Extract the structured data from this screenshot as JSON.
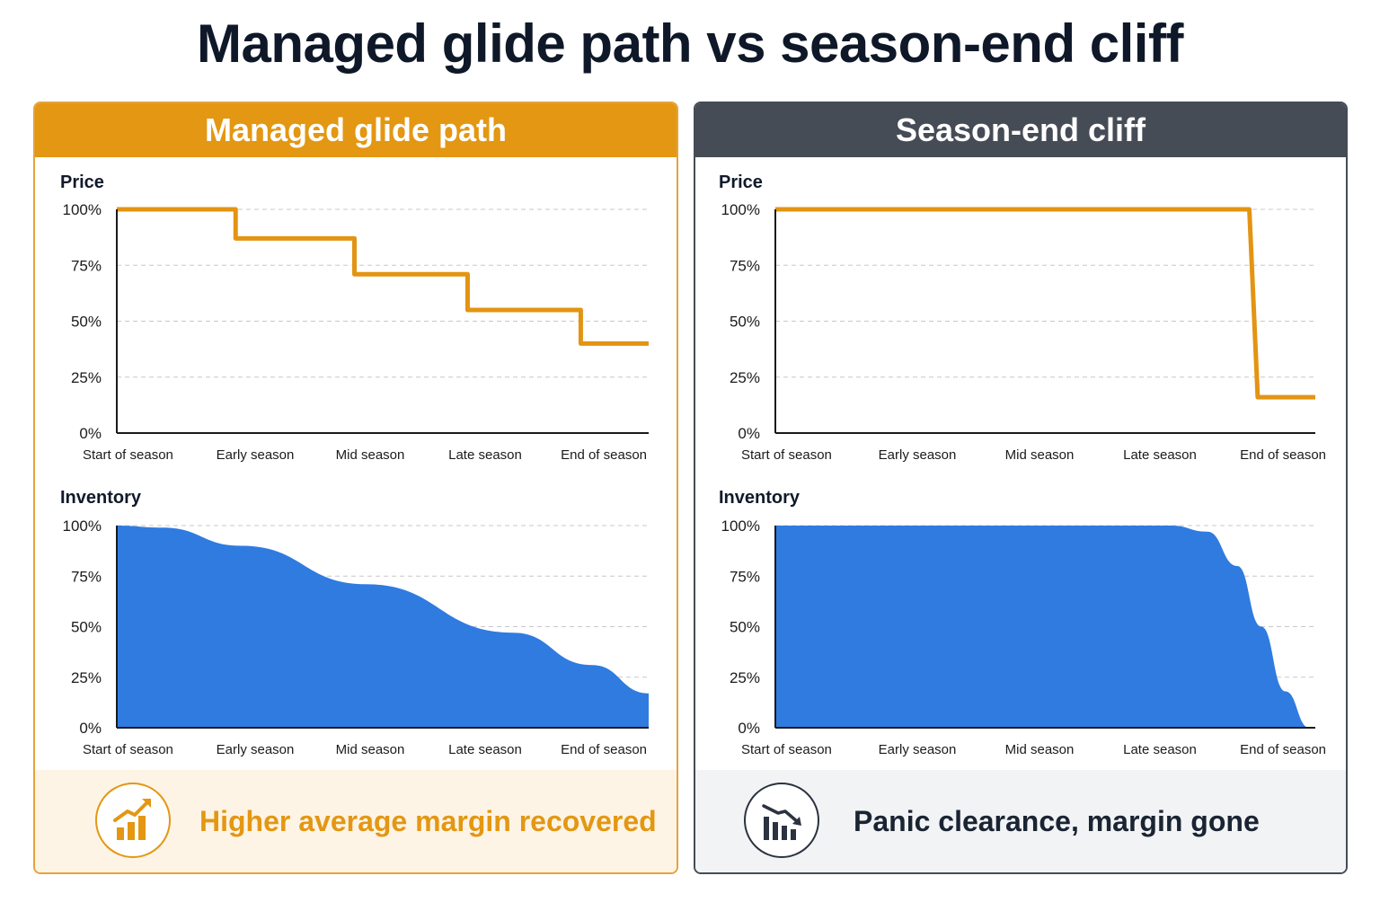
{
  "title": "Managed glide path vs season-end cliff",
  "colors": {
    "managed_accent": "#e39712",
    "cliff_header": "#464c55",
    "price_line": "#e39412",
    "inventory_fill": "#2f7be0",
    "axis": "#1a1a1a",
    "grid": "#c8c8c8"
  },
  "panels": [
    {
      "id": "managed",
      "header": "Managed glide path",
      "footer_text": "Higher average margin recovered",
      "footer_icon": "trend-up-bar-chart-icon",
      "charts": {
        "price": {
          "type": "line",
          "title": "Price",
          "x_tick_labels": [
            "Start of season",
            "Early season",
            "Mid season",
            "Late season",
            "End of season"
          ],
          "y_tick_labels": [
            "100%",
            "75%",
            "50%",
            "25%",
            "0%"
          ],
          "ylim": [
            0,
            100
          ],
          "grid": true,
          "step_line": true,
          "points": [
            {
              "x": 0,
              "y": 100
            },
            {
              "x": 1.05,
              "y": 100
            },
            {
              "x": 1.05,
              "y": 87
            },
            {
              "x": 2.1,
              "y": 87
            },
            {
              "x": 2.1,
              "y": 71
            },
            {
              "x": 3.1,
              "y": 71
            },
            {
              "x": 3.1,
              "y": 55
            },
            {
              "x": 4.1,
              "y": 55
            },
            {
              "x": 4.1,
              "y": 40
            },
            {
              "x": 4.7,
              "y": 40
            }
          ]
        },
        "inventory": {
          "type": "area",
          "title": "Inventory",
          "x_tick_labels": [
            "Start of season",
            "Early season",
            "Mid season",
            "Late season",
            "End of season"
          ],
          "y_tick_labels": [
            "100%",
            "75%",
            "50%",
            "25%",
            "0%"
          ],
          "ylim": [
            0,
            100
          ],
          "grid": true,
          "points": [
            {
              "x": 0,
              "y": 100
            },
            {
              "x": 0.4,
              "y": 99
            },
            {
              "x": 1.1,
              "y": 90
            },
            {
              "x": 2.2,
              "y": 71
            },
            {
              "x": 3.5,
              "y": 47
            },
            {
              "x": 4.2,
              "y": 31
            },
            {
              "x": 4.7,
              "y": 17
            }
          ]
        }
      }
    },
    {
      "id": "cliff",
      "header": "Season-end cliff",
      "footer_text": "Panic clearance, margin gone",
      "footer_icon": "trend-down-bar-chart-icon",
      "charts": {
        "price": {
          "type": "line",
          "title": "Price",
          "x_tick_labels": [
            "Start of season",
            "Early season",
            "Mid season",
            "Late season",
            "End of season"
          ],
          "y_tick_labels": [
            "100%",
            "75%",
            "50%",
            "25%",
            "0%"
          ],
          "ylim": [
            0,
            100
          ],
          "grid": true,
          "step_line": true,
          "points": [
            {
              "x": 0,
              "y": 100
            },
            {
              "x": 3.95,
              "y": 100
            },
            {
              "x": 4.02,
              "y": 16
            },
            {
              "x": 4.5,
              "y": 16
            }
          ]
        },
        "inventory": {
          "type": "area",
          "title": "Inventory",
          "x_tick_labels": [
            "Start of season",
            "Early season",
            "Mid season",
            "Late season",
            "End of season"
          ],
          "y_tick_labels": [
            "100%",
            "75%",
            "50%",
            "25%",
            "0%"
          ],
          "ylim": [
            0,
            100
          ],
          "grid": true,
          "points": [
            {
              "x": 0,
              "y": 100
            },
            {
              "x": 3.3,
              "y": 100
            },
            {
              "x": 3.6,
              "y": 97
            },
            {
              "x": 3.85,
              "y": 80
            },
            {
              "x": 4.05,
              "y": 50
            },
            {
              "x": 4.25,
              "y": 18
            },
            {
              "x": 4.45,
              "y": 0
            }
          ]
        }
      }
    }
  ]
}
